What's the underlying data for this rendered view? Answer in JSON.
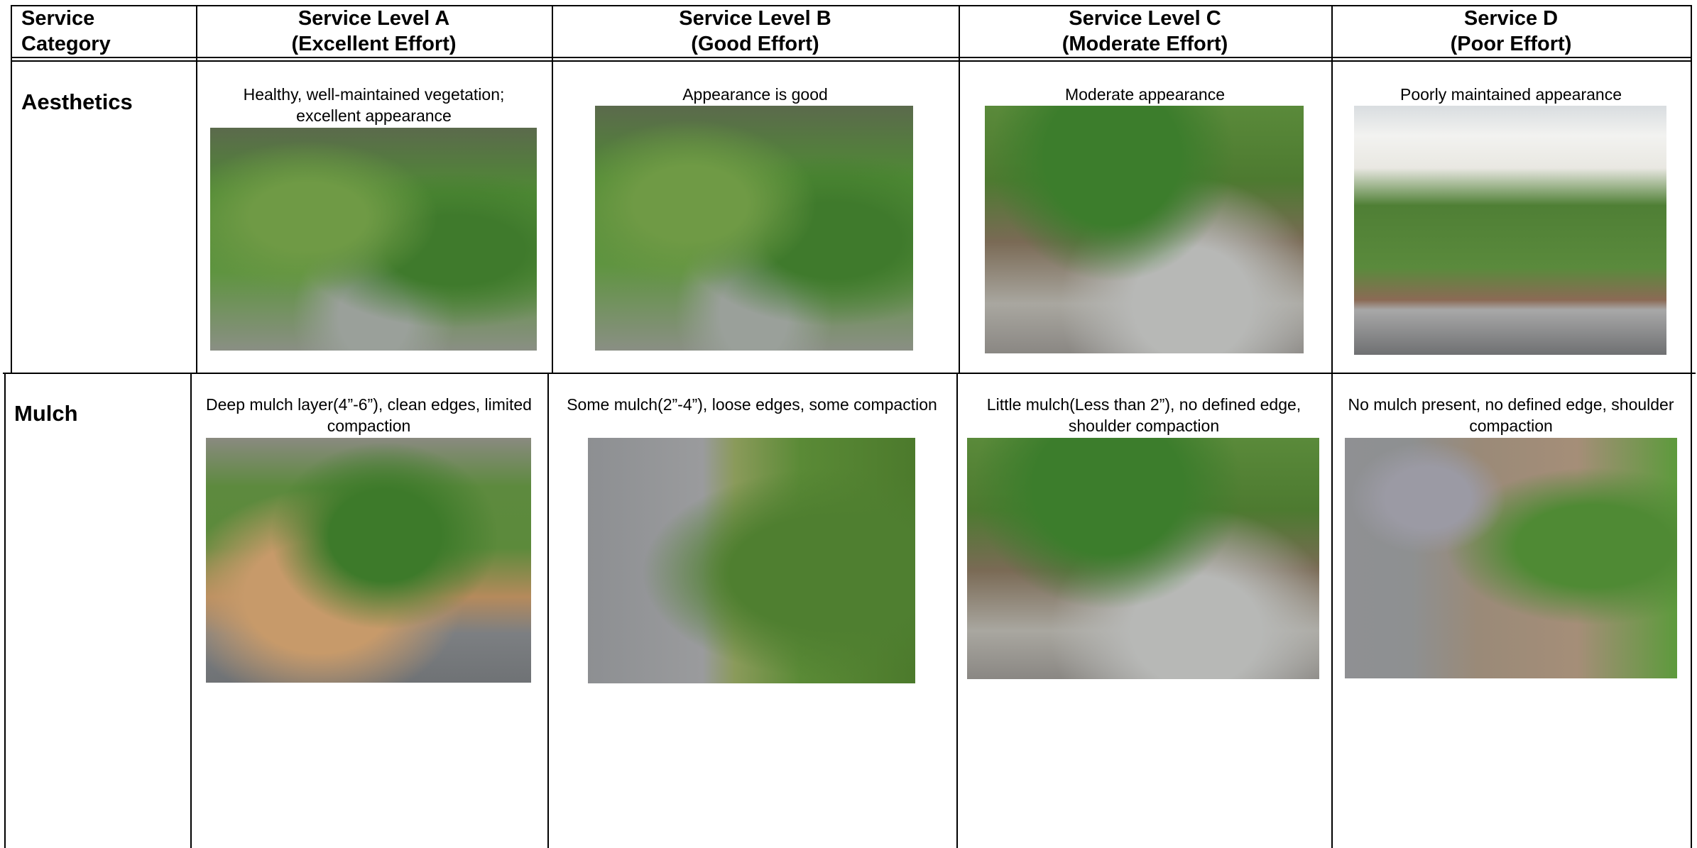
{
  "header": {
    "category": [
      "Service",
      "Category"
    ],
    "levels": [
      {
        "title": "Service Level A",
        "effort": "(Excellent Effort)"
      },
      {
        "title": "Service Level B",
        "effort": "(Good Effort)"
      },
      {
        "title": "Service Level C",
        "effort": "(Moderate Effort)"
      },
      {
        "title": "Service  D",
        "effort": "(Poor Effort)"
      }
    ]
  },
  "rows": [
    {
      "category": "Aesthetics",
      "cells": [
        "Healthy, well-maintained vegetation; excellent appearance",
        "Appearance is good",
        "Moderate appearance",
        "Poorly maintained appearance"
      ]
    },
    {
      "category": "Mulch",
      "cells": [
        "Deep mulch layer(4”-6”), clean edges, limited compaction",
        "Some mulch(2”-4”), loose edges, some compaction",
        "Little mulch(Less than 2”), no defined edge, shoulder compaction",
        "No mulch present, no defined edge, shoulder compaction"
      ]
    }
  ]
}
